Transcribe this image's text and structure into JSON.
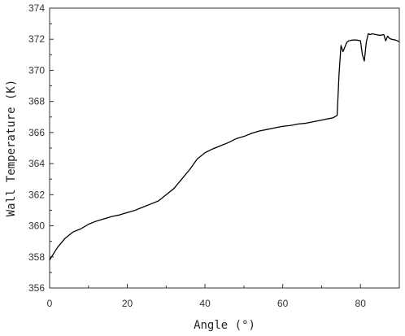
{
  "chart_data": {
    "type": "line",
    "title": "",
    "xlabel": "Angle (°)",
    "ylabel": "Wall Temperature (K)",
    "xlim": [
      0,
      90
    ],
    "ylim": [
      356,
      374
    ],
    "x_ticks": [
      0,
      20,
      40,
      60,
      80
    ],
    "y_ticks": [
      356,
      358,
      360,
      362,
      364,
      366,
      368,
      370,
      372,
      374
    ],
    "grid": false,
    "legend": "none",
    "line_color": "#000000",
    "series": [
      {
        "x": [
          0,
          1,
          2,
          3,
          4,
          5,
          6,
          7,
          8,
          10,
          12,
          14,
          16,
          18,
          20,
          22,
          24,
          26,
          28,
          30,
          32,
          34,
          36,
          38,
          40,
          42,
          44,
          46,
          48,
          50,
          52,
          54,
          56,
          58,
          60,
          62,
          64,
          66,
          68,
          70,
          72,
          73,
          74,
          74.5,
          75,
          75.5,
          76,
          76.5,
          77,
          78,
          79,
          80,
          80.5,
          81,
          81.5,
          82,
          82.5,
          83,
          84,
          85,
          86,
          86.5,
          87,
          87.5,
          88,
          89,
          90
        ],
        "y": [
          357.8,
          358.2,
          358.6,
          358.9,
          359.2,
          359.4,
          359.6,
          359.7,
          359.8,
          360.1,
          360.3,
          360.45,
          360.6,
          360.7,
          360.85,
          361.0,
          361.2,
          361.4,
          361.6,
          362.0,
          362.4,
          363.0,
          363.6,
          364.3,
          364.7,
          364.95,
          365.15,
          365.35,
          365.6,
          365.75,
          365.95,
          366.1,
          366.2,
          366.3,
          366.4,
          366.45,
          366.55,
          366.6,
          366.7,
          366.8,
          366.9,
          366.95,
          367.1,
          369.8,
          371.6,
          371.2,
          371.5,
          371.8,
          371.9,
          371.95,
          371.95,
          371.9,
          371.0,
          370.6,
          371.8,
          372.35,
          372.3,
          372.35,
          372.3,
          372.25,
          372.3,
          371.9,
          372.2,
          372.05,
          372.0,
          371.95,
          371.85
        ]
      }
    ]
  }
}
